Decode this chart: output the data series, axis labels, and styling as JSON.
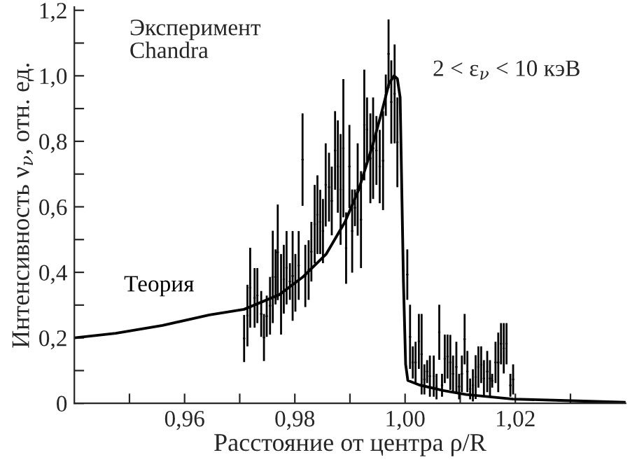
{
  "chart_data": {
    "type": "scatter",
    "xlabel": "Расстояние от центра ρ/R",
    "ylabel": "Интенсивность ν$_{ν}$, отн. ед.",
    "annotations": [
      "2 < ε$_{ν}$ < 10 кэВ",
      "Эксперимент\nChandra"
    ],
    "xlim": [
      0.94,
      1.04
    ],
    "ylim": [
      0,
      1.21
    ],
    "xticks": [
      {
        "value": 0.95,
        "label": null
      },
      {
        "value": 0.96,
        "label": "0,96"
      },
      {
        "value": 0.97,
        "label": null
      },
      {
        "value": 0.98,
        "label": "0,98"
      },
      {
        "value": 0.99,
        "label": null
      },
      {
        "value": 1.0,
        "label": "1,00"
      },
      {
        "value": 1.01,
        "label": null
      },
      {
        "value": 1.02,
        "label": "1,02"
      },
      {
        "value": 1.03,
        "label": null
      }
    ],
    "yticks": [
      0,
      {
        "value": 0.1,
        "label": null
      },
      {
        "value": 0.2,
        "label": "0,2"
      },
      {
        "value": 0.3,
        "label": null
      },
      {
        "value": 0.4,
        "label": "0,4"
      },
      {
        "value": 0.5,
        "label": null
      },
      {
        "value": 0.6,
        "label": "0,6"
      },
      {
        "value": 0.7,
        "label": null
      },
      {
        "value": 0.8,
        "label": "0,8"
      },
      {
        "value": 0.9,
        "label": null
      },
      {
        "value": 1.0,
        "label": "1,0"
      },
      {
        "value": 1.1,
        "label": null
      },
      {
        "value": 1.2,
        "label": "1,2"
      }
    ],
    "grid": false,
    "legend": false,
    "series": [
      {
        "marker": "circle",
        "color": "#000000",
        "x": [
          0.9708,
          0.9714,
          0.9719,
          0.9727,
          0.9732,
          0.9739,
          0.9744,
          0.9749,
          0.9755,
          0.976,
          0.9765,
          0.9769,
          0.9775,
          0.978,
          0.9785,
          0.9791,
          0.9796,
          0.9801,
          0.9807,
          0.9814,
          0.9819,
          0.9825,
          0.983,
          0.9836,
          0.9841,
          0.9846,
          0.9851,
          0.9856,
          0.9862,
          0.9867,
          0.9873,
          0.9878,
          0.9883,
          0.9888,
          0.9893,
          0.9899,
          0.9904,
          0.9909,
          0.9914,
          0.992,
          0.9926,
          0.9931,
          0.9937,
          0.9942,
          0.9948,
          0.9954,
          0.996,
          0.9965,
          0.997,
          0.9975,
          0.9981,
          0.9986,
          1.0004,
          1.0009,
          1.0014,
          1.0019,
          1.0025,
          1.003,
          1.0035,
          1.004,
          1.0045,
          1.0052,
          1.0057,
          1.0062,
          1.0067,
          1.0072,
          1.0077,
          1.0082,
          1.0087,
          1.0093,
          1.0098,
          1.0103,
          1.0108,
          1.0113,
          1.0118,
          1.0123,
          1.0128,
          1.0133,
          1.0138,
          1.0143,
          1.0149,
          1.0154,
          1.0158,
          1.0164,
          1.0169,
          1.0174,
          1.0179,
          1.0184,
          1.0191,
          1.0196
        ],
        "values": [
          0.198,
          0.268,
          0.353,
          0.322,
          0.329,
          0.273,
          0.201,
          0.266,
          0.298,
          0.386,
          0.386,
          0.461,
          0.333,
          0.379,
          0.414,
          0.372,
          0.389,
          0.368,
          0.421,
          0.744,
          0.389,
          0.407,
          0.463,
          0.547,
          0.576,
          0.554,
          0.526,
          0.667,
          0.66,
          0.618,
          0.772,
          0.723,
          0.653,
          0.779,
          0.474,
          0.723,
          0.526,
          0.597,
          0.653,
          0.561,
          0.85,
          0.836,
          0.748,
          0.779,
          0.772,
          0.723,
          0.741,
          0.941,
          1.067,
          0.92,
          0.945,
          0.797,
          0.393,
          0.203,
          0.125,
          0.125,
          0.189,
          0.15,
          0.073,
          0.097,
          0.083,
          0.083,
          0.051,
          0.217,
          0.055,
          0.136,
          0.143,
          0.125,
          0.09,
          0.111,
          0.051,
          0.09,
          0.196,
          0.097,
          0.044,
          0.055,
          0.08,
          0.111,
          0.118,
          0.076,
          0.097,
          0.076,
          0.069,
          0.125,
          0.125,
          0.182,
          0.168,
          0.182,
          0.055,
          0.073
        ],
        "errors": [
          0.072,
          0.094,
          0.122,
          0.091,
          0.084,
          0.07,
          0.072,
          0.063,
          0.088,
          0.141,
          0.084,
          0.146,
          0.123,
          0.105,
          0.112,
          0.056,
          0.137,
          0.088,
          0.105,
          0.141,
          0.095,
          0.091,
          0.091,
          0.12,
          0.12,
          0.098,
          0.098,
          0.127,
          0.105,
          0.105,
          0.12,
          0.141,
          0.169,
          0.211,
          0.109,
          0.127,
          0.127,
          0.056,
          0.141,
          0.148,
          0.169,
          0.098,
          0.137,
          0.155,
          0.105,
          0.112,
          0.151,
          0.063,
          0.105,
          0.127,
          0.151,
          0.137,
          0.077,
          0.098,
          0.049,
          0.063,
          0.084,
          0.123,
          0.046,
          0.035,
          0.063,
          0.063,
          0.039,
          0.084,
          0.035,
          0.074,
          0.067,
          0.084,
          0.056,
          0.077,
          0.039,
          0.056,
          0.077,
          0.063,
          0.032,
          0.049,
          0.067,
          0.063,
          0.056,
          0.056,
          0.063,
          0.056,
          0.021,
          0.063,
          0.091,
          0.063,
          0.077,
          0.063,
          0.035,
          0.046
        ]
      },
      {
        "name": "Теория",
        "type": "line",
        "marker": "none",
        "line_style": "solid",
        "color": "#000000",
        "x": [
          0.94,
          0.9475,
          0.956,
          0.9645,
          0.9708,
          0.9772,
          0.9814,
          0.9857,
          0.9891,
          0.9916,
          0.9942,
          0.9958,
          0.9971,
          0.998,
          0.9986,
          0.9991,
          0.9994,
          0.9997,
          1.0001,
          1.0005,
          1.0026,
          1.0069,
          1.0111,
          1.0196,
          1.0281,
          1.04
        ],
        "values": [
          0.2,
          0.214,
          0.238,
          0.27,
          0.287,
          0.332,
          0.385,
          0.456,
          0.554,
          0.653,
          0.793,
          0.892,
          0.977,
          1.0,
          0.991,
          0.934,
          0.653,
          0.372,
          0.119,
          0.07,
          0.056,
          0.039,
          0.027,
          0.013,
          0.009,
          0.003
        ]
      }
    ]
  }
}
